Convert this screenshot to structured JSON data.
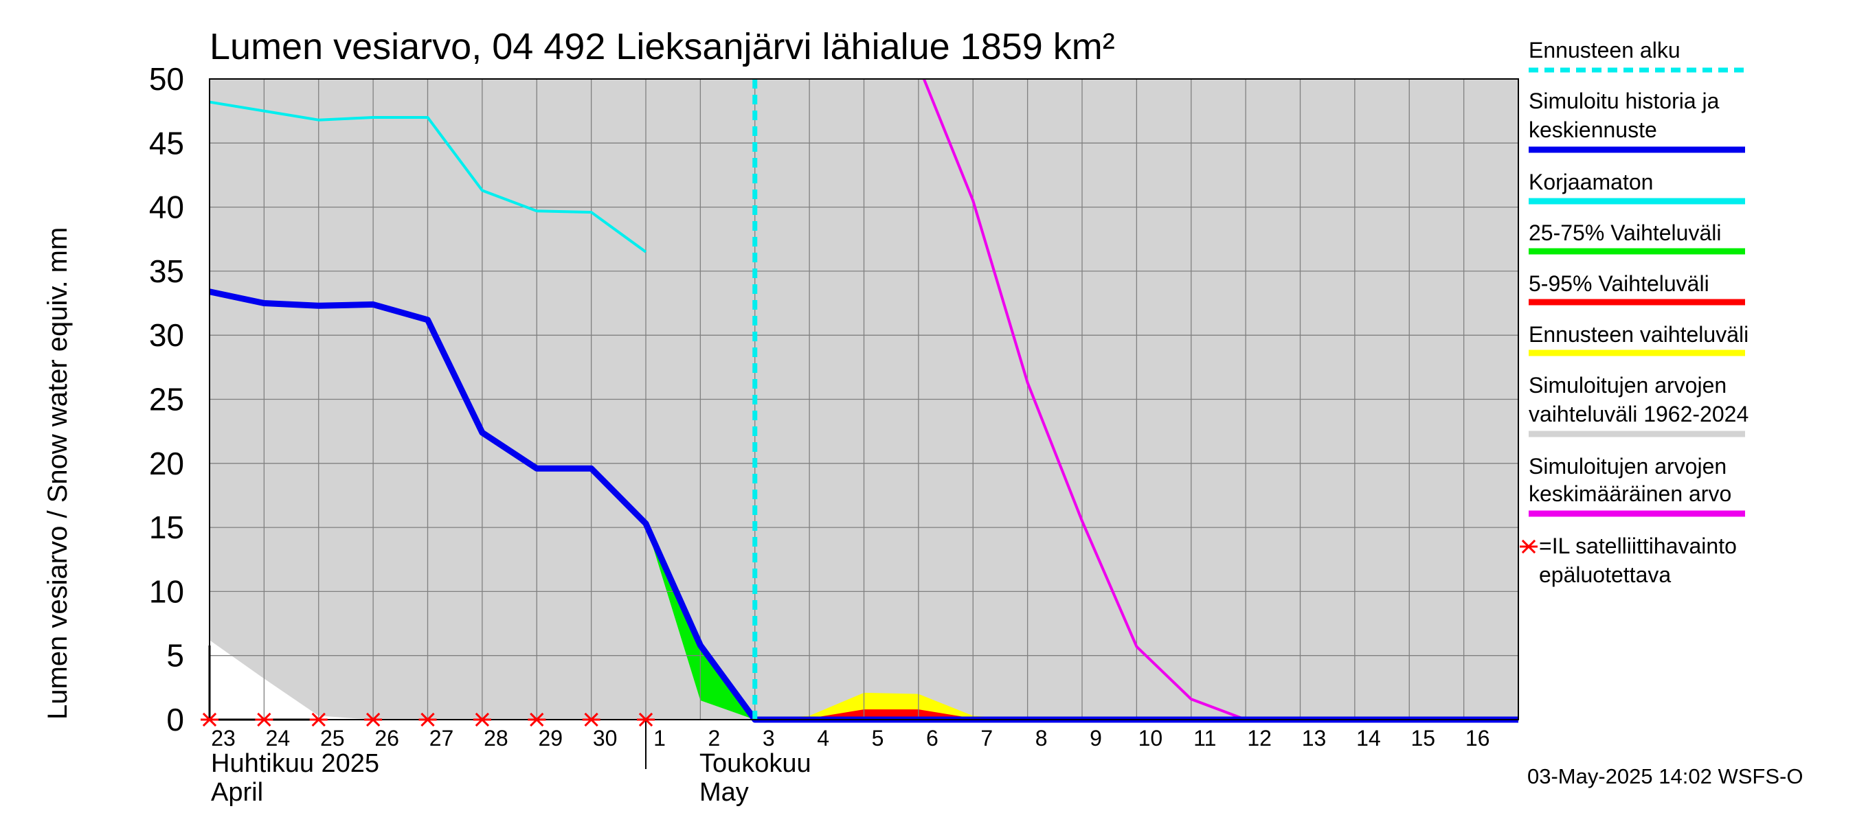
{
  "chart_data": {
    "type": "line",
    "title": "Lumen vesiarvo, 04 492 Lieksanjärvi lähialue 1859 km²",
    "ylabel": "Lumen vesiarvo / Snow water equiv.    mm",
    "ylim": [
      0,
      50
    ],
    "yticks": [
      0,
      5,
      10,
      15,
      20,
      25,
      30,
      35,
      40,
      45,
      50
    ],
    "xlim": [
      0,
      24
    ],
    "day_labels": [
      "23",
      "24",
      "25",
      "26",
      "27",
      "28",
      "29",
      "30",
      "1",
      "2",
      "3",
      "4",
      "5",
      "6",
      "7",
      "8",
      "9",
      "10",
      "11",
      "12",
      "13",
      "14",
      "15",
      "16"
    ],
    "month_labels": {
      "april_fi": "Huhtikuu  2025",
      "april_en": "April",
      "may_fi": "Toukokuu",
      "may_en": "May"
    },
    "month_boundary_x": 8,
    "forecast_start_x": 10,
    "grid": true,
    "series": [
      {
        "name": "Simuloitujen arvojen vaihteluväli 1962-2024",
        "kind": "band",
        "color": "#d3d3d3",
        "x": [
          0,
          24
        ],
        "low": [
          0,
          0
        ],
        "high": [
          50,
          50
        ]
      },
      {
        "name": "Simuloitujen arvojen vaihteluväli 1962-2024 (lower envelope)",
        "kind": "white-band",
        "color": "#ffffff",
        "x": [
          0,
          1,
          2,
          3
        ],
        "low": [
          0,
          0,
          0,
          0
        ],
        "high": [
          6.2,
          3.2,
          0.3,
          0
        ]
      },
      {
        "name": "25-75% Vaihteluväli",
        "kind": "band",
        "color": "#00ee00",
        "x": [
          8,
          9,
          10
        ],
        "low": [
          15.3,
          1.5,
          0
        ],
        "high": [
          15.3,
          5.8,
          0
        ]
      },
      {
        "name": "Ennusteen vaihteluväli",
        "kind": "band",
        "color": "#ffff00",
        "x": [
          10,
          11,
          12,
          13,
          14,
          15
        ],
        "low": [
          0,
          0,
          0,
          0,
          0,
          0
        ],
        "high": [
          0,
          0.3,
          2.1,
          2.0,
          0.3,
          0
        ]
      },
      {
        "name": "5-95% Vaihteluväli",
        "kind": "band",
        "color": "#ff0000",
        "x": [
          10,
          11,
          12,
          13,
          14,
          15
        ],
        "low": [
          0,
          0,
          0,
          0,
          0,
          0
        ],
        "high": [
          0,
          0.1,
          0.8,
          0.8,
          0.1,
          0
        ]
      },
      {
        "name": "Korjaamaton",
        "kind": "line",
        "color": "#00eeee",
        "width": 4,
        "x": [
          0,
          1,
          2,
          3,
          4,
          5,
          6,
          7,
          8
        ],
        "y": [
          48.2,
          47.5,
          46.8,
          47.0,
          47.0,
          41.3,
          39.7,
          39.6,
          36.5
        ]
      },
      {
        "name": "Simuloitujen arvojen keskimääräinen arvo",
        "kind": "line",
        "color": "#ee00ee",
        "width": 4,
        "x": [
          13.1,
          14,
          15,
          16,
          17,
          18,
          19,
          24
        ],
        "y": [
          50,
          40.5,
          26.3,
          15.5,
          5.7,
          1.6,
          0,
          0
        ]
      },
      {
        "name": "Simuloitu historia ja keskiennuste",
        "kind": "line",
        "color": "#0000ee",
        "width": 9,
        "x": [
          0,
          1,
          2,
          3,
          4,
          5,
          6,
          7,
          8,
          9,
          10,
          24
        ],
        "y": [
          33.4,
          32.5,
          32.3,
          32.4,
          31.2,
          22.4,
          19.6,
          19.6,
          15.3,
          5.8,
          0,
          0
        ]
      }
    ],
    "satellite_markers": {
      "x": [
        0,
        1,
        2,
        3,
        4,
        5,
        6,
        7,
        8
      ],
      "y": 0,
      "color": "#ff0000"
    }
  },
  "legend": [
    {
      "label_lines": [
        "Ennusteen alku"
      ],
      "color": "#00eeee",
      "style": "dashed"
    },
    {
      "label_lines": [
        "Simuloitu historia ja",
        "keskiennuste"
      ],
      "color": "#0000ee",
      "style": "line"
    },
    {
      "label_lines": [
        "Korjaamaton"
      ],
      "color": "#00eeee",
      "style": "line"
    },
    {
      "label_lines": [
        "25-75% Vaihteluväli"
      ],
      "color": "#00ee00",
      "style": "line"
    },
    {
      "label_lines": [
        "5-95% Vaihteluväli"
      ],
      "color": "#ff0000",
      "style": "line"
    },
    {
      "label_lines": [
        "Ennusteen vaihteluväli"
      ],
      "color": "#ffff00",
      "style": "line"
    },
    {
      "label_lines": [
        "Simuloitujen arvojen",
        "vaihteluväli 1962-2024"
      ],
      "color": "#d3d3d3",
      "style": "line"
    },
    {
      "label_lines": [
        "Simuloitujen arvojen",
        "keskimääräinen arvo"
      ],
      "color": "#ee00ee",
      "style": "line"
    },
    {
      "label_lines": [
        "=IL satelliittihavainto",
        "epäluotettava"
      ],
      "color": "#ff0000",
      "style": "marker"
    }
  ],
  "footer": {
    "timestamp": "03-May-2025 14:02 WSFS-O"
  }
}
